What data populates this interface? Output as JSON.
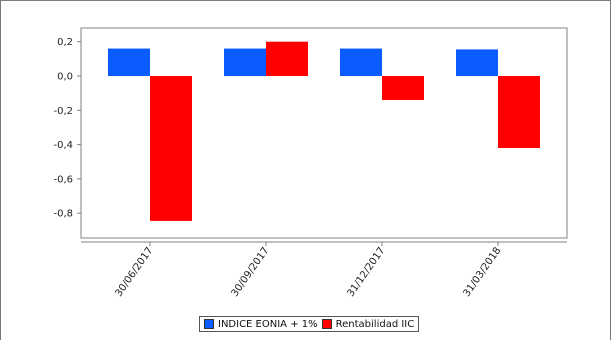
{
  "chart_data": {
    "type": "bar",
    "categories": [
      "30/06/2017",
      "30/09/2017",
      "31/12/2017",
      "31/03/2018"
    ],
    "series": [
      {
        "name": "INDICE EONIA + 1%",
        "color": "#0a5cff",
        "values": [
          0.16,
          0.16,
          0.16,
          0.155
        ]
      },
      {
        "name": "Rentabilidad IIC",
        "color": "#ff0000",
        "values": [
          -0.845,
          0.2,
          -0.14,
          -0.42
        ]
      }
    ],
    "ylim": [
      -0.95,
      0.25
    ],
    "yticks": [
      0.2,
      0.0,
      -0.2,
      -0.4,
      -0.6,
      -0.8
    ],
    "ytick_labels": [
      "0,2",
      "0,0",
      "-0,2",
      "-0,4",
      "-0,6",
      "-0,8"
    ],
    "grid": false,
    "legend_position": "bottom-center"
  }
}
